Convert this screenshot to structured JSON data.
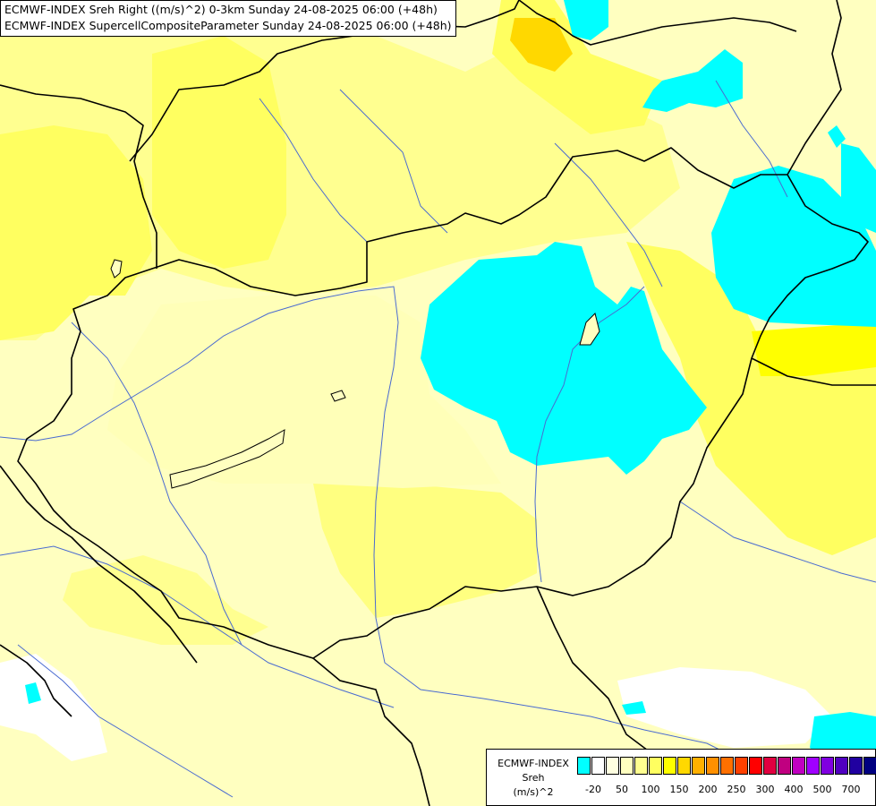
{
  "title": {
    "line1": "ECMWF-INDEX Sreh Right ((m/s)^2) 0-3km Sunday 24-08-2025 06:00 (+48h)",
    "line2": "ECMWF-INDEX SupercellCompositeParameter Sunday 24-08-2025 06:00 (+48h)"
  },
  "legend": {
    "line1": "ECMWF-INDEX",
    "line2": "Sreh",
    "line3": "(m/s)^2",
    "colors": [
      "#00ffff",
      "#ffffff",
      "#ffffe0",
      "#ffffc0",
      "#ffff90",
      "#ffff60",
      "#ffff00",
      "#ffd800",
      "#ffb000",
      "#ff9000",
      "#ff7000",
      "#ff4000",
      "#ff0000",
      "#e00040",
      "#c00080",
      "#c000c0",
      "#a000ff",
      "#8000e0",
      "#5000c0",
      "#2000a0",
      "#000080"
    ],
    "ticks": [
      "-20",
      "50",
      "100",
      "150",
      "200",
      "250",
      "300",
      "400",
      "500",
      "700"
    ]
  },
  "map_colors": {
    "background": "#ffffc0",
    "pale_yellow": "#ffffa0",
    "yellow": "#ffff60",
    "bright_yellow": "#ffff00",
    "orange_yellow": "#ffd800",
    "cyan": "#00ffff",
    "white": "#ffffff",
    "border": "#000000",
    "river": "#4060c0"
  }
}
